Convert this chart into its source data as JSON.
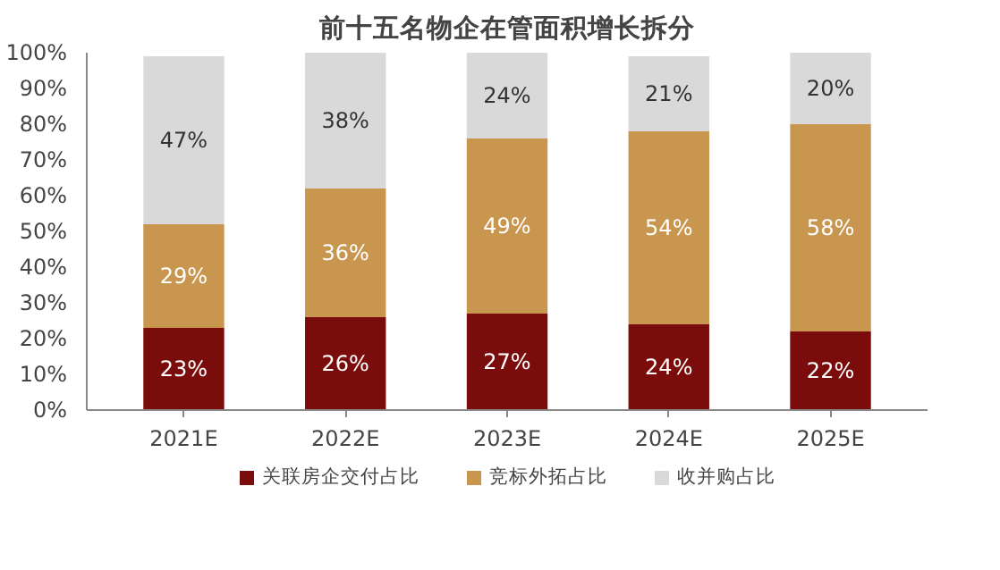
{
  "chart_data": {
    "type": "bar",
    "title": "前十五名物企在管面积增长拆分",
    "stacked": true,
    "categories": [
      "2021E",
      "2022E",
      "2023E",
      "2024E",
      "2025E"
    ],
    "series": [
      {
        "name": "关联房企交付占比",
        "color": "#7b0c0c",
        "values": [
          23,
          26,
          27,
          24,
          22
        ],
        "value_labels": [
          "23%",
          "26%",
          "27%",
          "24%",
          "22%"
        ]
      },
      {
        "name": "竞标外拓占比",
        "color": "#c8964e",
        "values": [
          29,
          36,
          49,
          54,
          58
        ],
        "value_labels": [
          "29%",
          "36%",
          "49%",
          "54%",
          "58%"
        ]
      },
      {
        "name": "收并购占比",
        "color": "#d9d9d9",
        "values": [
          47,
          38,
          24,
          21,
          20
        ],
        "value_labels": [
          "47%",
          "38%",
          "24%",
          "21%",
          "20%"
        ]
      }
    ],
    "ylim": [
      0,
      100
    ],
    "yticks": [
      {
        "value": 0,
        "label": "0%"
      },
      {
        "value": 10,
        "label": "10%"
      },
      {
        "value": 20,
        "label": "20%"
      },
      {
        "value": 30,
        "label": "30%"
      },
      {
        "value": 40,
        "label": "40%"
      },
      {
        "value": 50,
        "label": "50%"
      },
      {
        "value": 60,
        "label": "60%"
      },
      {
        "value": 70,
        "label": "70%"
      },
      {
        "value": 80,
        "label": "80%"
      },
      {
        "value": 90,
        "label": "90%"
      },
      {
        "value": 100,
        "label": "100%"
      }
    ],
    "grid": false,
    "legend": "bottom"
  }
}
